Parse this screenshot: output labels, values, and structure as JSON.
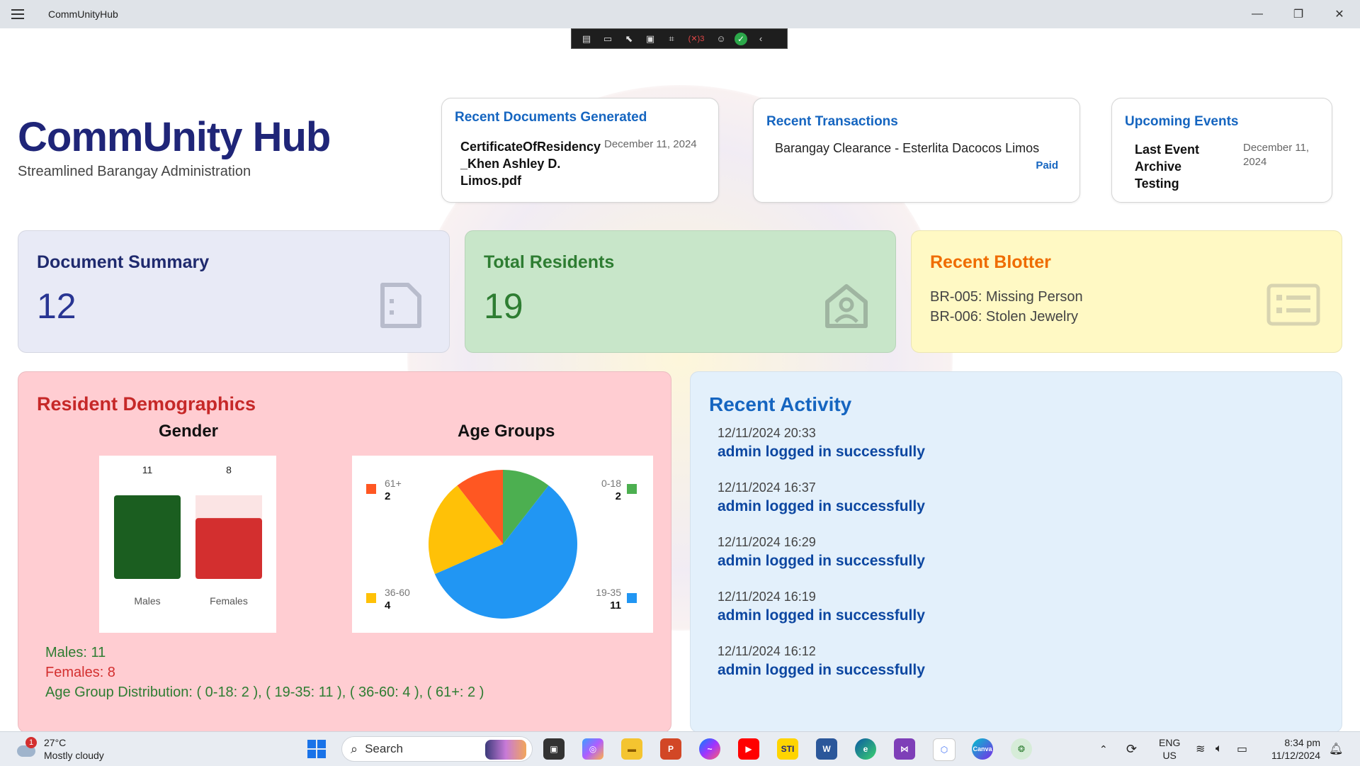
{
  "window": {
    "title": "CommUnityHub",
    "controls": [
      "minimize",
      "restore",
      "close"
    ]
  },
  "devbar": {
    "error_count": "3"
  },
  "header": {
    "title": "CommUnity Hub",
    "subtitle": "Streamlined Barangay Administration"
  },
  "recent_documents": {
    "title": "Recent Documents Generated",
    "name": "CertificateOfResidency _Khen Ashley D. Limos.pdf",
    "date": "December 11, 2024"
  },
  "recent_transactions": {
    "title": "Recent Transactions",
    "line": "Barangay Clearance - Esterlita Dacocos Limos",
    "status": "Paid"
  },
  "upcoming_events": {
    "title": "Upcoming Events",
    "name": "Last Event Archive Testing",
    "date": "December 11, 2024"
  },
  "document_summary": {
    "title": "Document Summary",
    "value": "12",
    "color": "#283593",
    "bg": "#e8eaf6"
  },
  "total_residents": {
    "title": "Total Residents",
    "value": "19",
    "color": "#2e7d32",
    "bg": "#c8e6c9"
  },
  "recent_blotter": {
    "title": "Recent Blotter",
    "items": [
      "BR-005: Missing Person",
      "BR-006: Stolen Jewelry"
    ],
    "color": "#ef6c00",
    "bg": "#fff9c4"
  },
  "demographics": {
    "title": "Resident Demographics",
    "gender_title": "Gender",
    "age_title": "Age Groups",
    "males_line": "Males: 11",
    "females_line": "Females: 8",
    "age_line": "Age Group Distribution: ( 0-18: 2 ), ( 19-35: 11 ), ( 36-60: 4 ), ( 61+: 2 )"
  },
  "chart_data": [
    {
      "type": "bar",
      "categories": [
        "Males",
        "Females"
      ],
      "values": [
        11,
        8
      ],
      "colors": [
        "#1b5e20",
        "#d32f2f"
      ],
      "title": "Gender",
      "ylim": [
        0,
        11
      ]
    },
    {
      "type": "pie",
      "categories": [
        "0-18",
        "19-35",
        "36-60",
        "61+"
      ],
      "values": [
        2,
        11,
        4,
        2
      ],
      "colors": [
        "#4caf50",
        "#2196f3",
        "#ffc107",
        "#ff5722"
      ],
      "title": "Age Groups"
    }
  ],
  "recent_activity": {
    "title": "Recent Activity",
    "items": [
      {
        "time": "12/11/2024 20:33",
        "message": "admin logged in successfully"
      },
      {
        "time": "12/11/2024 16:37",
        "message": "admin logged in successfully"
      },
      {
        "time": "12/11/2024 16:29",
        "message": "admin logged in successfully"
      },
      {
        "time": "12/11/2024 16:19",
        "message": "admin logged in successfully"
      },
      {
        "time": "12/11/2024 16:12",
        "message": "admin logged in successfully"
      }
    ]
  },
  "taskbar": {
    "weather_temp": "27°C",
    "weather_desc": "Mostly cloudy",
    "weather_badge": "1",
    "search_label": "Search",
    "lang_top": "ENG",
    "lang_bottom": "US",
    "time": "8:34 pm",
    "date": "11/12/2024",
    "pinned": [
      "start-icon",
      "task-view-icon",
      "copilot-icon",
      "file-explorer-icon",
      "powerpoint-icon",
      "messenger-icon",
      "youtube-icon",
      "sti-icon",
      "word-icon",
      "edge-icon",
      "visual-studio-icon",
      "app-icon",
      "canva-icon",
      "communityhub-icon"
    ]
  }
}
